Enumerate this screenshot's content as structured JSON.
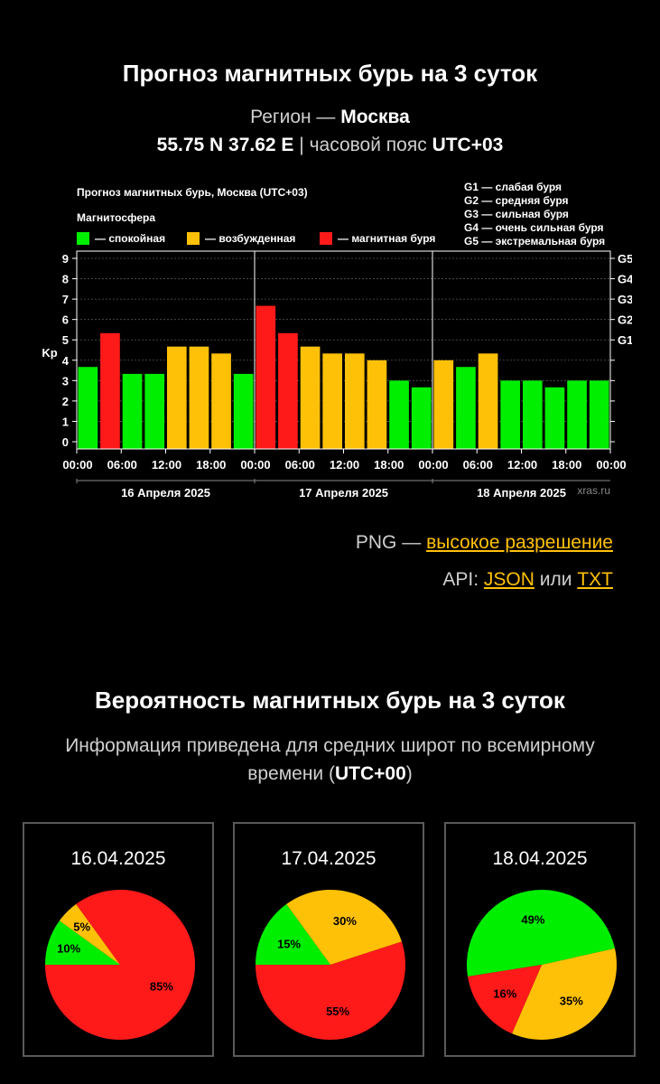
{
  "header": {
    "title": "Прогноз магнитных бурь на 3 суток",
    "region_prefix": "Регион —",
    "region_name": "Москва",
    "coords": "55.75 N 37.62 E",
    "separator": "|",
    "timezone_prefix": "часовой пояс",
    "timezone": "UTC+03"
  },
  "chart_data": {
    "type": "bar",
    "title": "Прогноз магнитных бурь, Москва (UTC+03)",
    "ylabel": "Kp",
    "ylim": [
      0,
      9
    ],
    "y_ticks": [
      "0",
      "1",
      "2",
      "3",
      "4",
      "5",
      "6",
      "7",
      "8",
      "9"
    ],
    "g_ticks": [
      {
        "label": "G1",
        "kp": 5
      },
      {
        "label": "G2",
        "kp": 6
      },
      {
        "label": "G3",
        "kp": 7
      },
      {
        "label": "G4",
        "kp": 8
      },
      {
        "label": "G5",
        "kp": 9
      }
    ],
    "x_tick_labels": [
      "00:00",
      "06:00",
      "12:00",
      "18:00",
      "00:00",
      "06:00",
      "12:00",
      "18:00",
      "00:00",
      "06:00",
      "12:00",
      "18:00",
      "00:00"
    ],
    "day_labels": [
      "16 Апреля 2025",
      "17 Апреля 2025",
      "18 Апреля 2025"
    ],
    "values": [
      3.67,
      5.33,
      3.33,
      3.33,
      4.67,
      4.67,
      4.33,
      3.33,
      6.67,
      5.33,
      4.67,
      4.33,
      4.33,
      4.0,
      3.0,
      2.67,
      4.0,
      3.67,
      4.33,
      3.0,
      3.0,
      2.67,
      3.0,
      3.0
    ],
    "legend_title": "Магнитосфера",
    "legend": [
      {
        "label": "— спокойная",
        "color": "#00ee00"
      },
      {
        "label": "— возбужденная",
        "color": "#ffc107"
      },
      {
        "label": "— магнитная буря",
        "color": "#ff1a1a"
      }
    ],
    "g_legend": [
      "G1 — слабая буря",
      "G2 — средняя буря",
      "G3 — сильная буря",
      "G4 — очень сильная буря",
      "G5 — экстремальная буря"
    ],
    "watermark": "xras.ru",
    "colors": {
      "quiet": "#00ee00",
      "active": "#ffc107",
      "storm": "#ff1a1a"
    }
  },
  "links": {
    "png_prefix": "PNG —",
    "png_link": "высокое разрешение",
    "api_prefix": "API:",
    "json_link": "JSON",
    "or_text": "или",
    "txt_link": "TXT"
  },
  "probability": {
    "title": "Вероятность магнитных бурь на 3 суток",
    "info_text": "Информация приведена для средних широт по всемирному времени (",
    "info_utc": "UTC+00",
    "info_close": ")",
    "days": [
      {
        "date": "16.04.2025",
        "quiet": 10,
        "active": 5,
        "storm": 85,
        "labels": [
          "10%",
          "5%",
          "85%"
        ]
      },
      {
        "date": "17.04.2025",
        "quiet": 15,
        "active": 30,
        "storm": 55,
        "labels": [
          "15%",
          "30%",
          "55%"
        ]
      },
      {
        "date": "18.04.2025",
        "quiet": 49,
        "active": 35,
        "storm": 16,
        "labels": [
          "49%",
          "35%",
          "16%"
        ]
      }
    ]
  }
}
